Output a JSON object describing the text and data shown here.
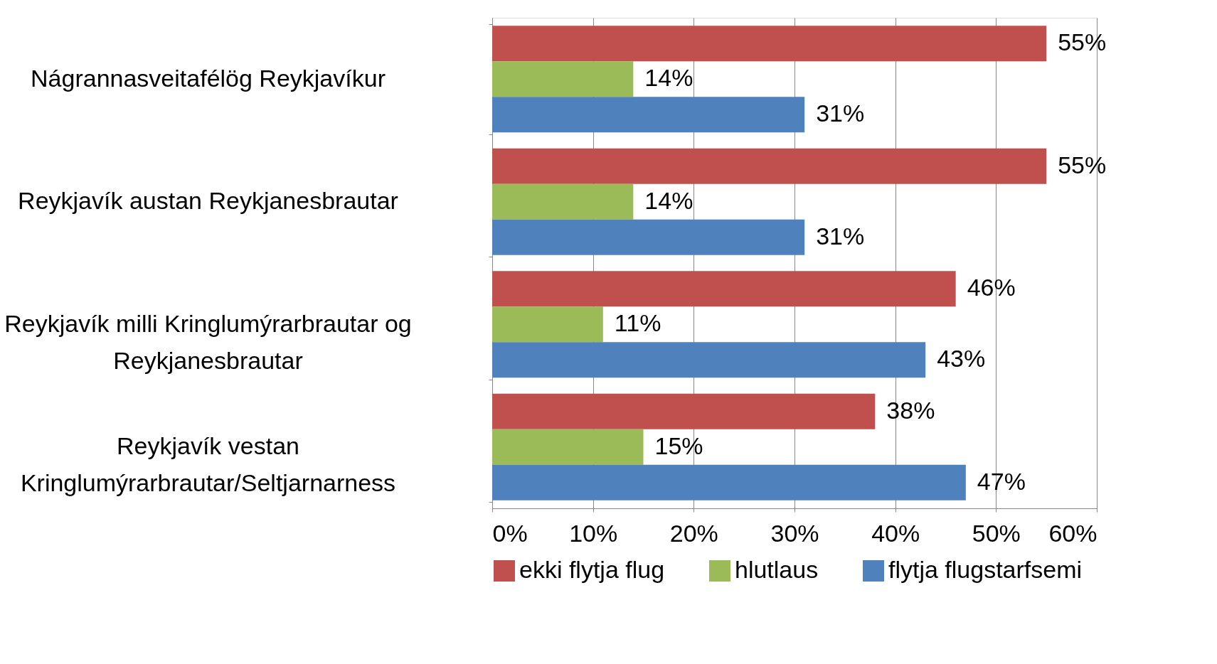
{
  "chart_data": {
    "type": "bar",
    "orientation": "horizontal",
    "categories": [
      "Nágrannasveitafélög Reykjavíkur",
      "Reykjavík austan Reykjanesbrautar",
      "Reykjavík milli Kringlumýrarbrautar og Reykjanesbrautar",
      "Reykjavík vestan Kringlumýrarbrautar/Seltjarnarness"
    ],
    "series": [
      {
        "name": "ekki flytja flug",
        "color": "#c0504d",
        "values": [
          55,
          55,
          46,
          38
        ],
        "value_labels": [
          "55%",
          "55%",
          "46%",
          "38%"
        ]
      },
      {
        "name": "hlutlaus",
        "color": "#9bbb59",
        "values": [
          14,
          14,
          11,
          15
        ],
        "value_labels": [
          "14%",
          "14%",
          "11%",
          "15%"
        ]
      },
      {
        "name": "flytja flugstarfsemi",
        "color": "#4f81bd",
        "values": [
          31,
          31,
          43,
          47
        ],
        "value_labels": [
          "31%",
          "31%",
          "43%",
          "47%"
        ]
      }
    ],
    "xlim": [
      0,
      60
    ],
    "xticks": [
      {
        "value": 0,
        "label": "0%"
      },
      {
        "value": 10,
        "label": "10%"
      },
      {
        "value": 20,
        "label": "20%"
      },
      {
        "value": 30,
        "label": "30%"
      },
      {
        "value": 40,
        "label": "40%"
      },
      {
        "value": 50,
        "label": "50%"
      },
      {
        "value": 60,
        "label": "60%"
      }
    ],
    "grid": "x",
    "legend": "bottom"
  }
}
